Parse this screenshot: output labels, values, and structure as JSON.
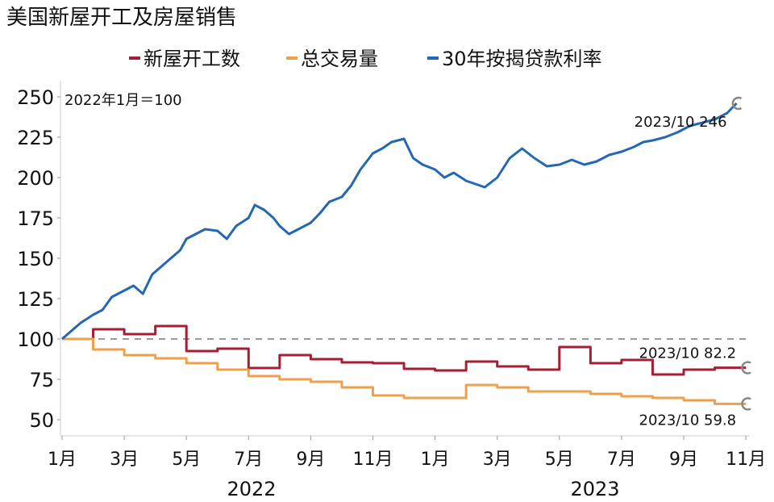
{
  "chart_data": {
    "type": "line",
    "title": "美国新屋开工及房屋销售",
    "note": "2022年1月＝100",
    "baseline": 100,
    "ylim": [
      40,
      260
    ],
    "yticks": [
      50,
      75,
      100,
      125,
      150,
      175,
      200,
      225,
      250
    ],
    "xticks": [
      "1月",
      "3月",
      "5月",
      "7月",
      "9月",
      "11月",
      "1月",
      "3月",
      "5月",
      "7月",
      "9月",
      "11月"
    ],
    "years": [
      "2022",
      "2023"
    ],
    "legend_position": "top",
    "series": [
      {
        "name": "新屋开工数",
        "color": "#a61e33",
        "step": true,
        "values": [
          100,
          106,
          103,
          108,
          92.5,
          94,
          82,
          90,
          87.5,
          85.5,
          85,
          81.5,
          80.5,
          86,
          83,
          81,
          95,
          85,
          87,
          78,
          81,
          82.2
        ],
        "label": "2023/10  82.2"
      },
      {
        "name": "总交易量",
        "color": "#f0a04b",
        "step": true,
        "values": [
          100,
          93.5,
          90,
          88,
          85,
          81,
          77,
          75,
          73.5,
          70,
          65,
          63.5,
          63.5,
          71.5,
          70,
          67.5,
          67.5,
          66,
          64.5,
          63.5,
          62,
          59.8
        ],
        "label": "2023/10  59.8"
      },
      {
        "name": "30年按揭贷款利率",
        "color": "#2467b3",
        "step": false,
        "x": [
          0,
          0.3,
          0.6,
          1,
          1.3,
          1.6,
          2,
          2.3,
          2.6,
          2.9,
          3.2,
          3.5,
          3.8,
          4,
          4.3,
          4.6,
          5,
          5.3,
          5.6,
          6,
          6.2,
          6.5,
          6.8,
          7,
          7.3,
          7.6,
          8,
          8.3,
          8.6,
          9,
          9.3,
          9.6,
          10,
          10.3,
          10.6,
          11,
          11.3,
          11.6,
          12,
          12.3,
          12.6,
          13,
          13.3,
          13.6,
          14,
          14.4,
          14.8,
          15.2,
          15.6,
          16,
          16.4,
          16.8,
          17.2,
          17.6,
          18,
          18.4,
          18.7,
          19,
          19.4,
          19.8,
          20.2,
          20.6,
          21,
          21.4,
          21.7
        ],
        "values": [
          100,
          105,
          110,
          115,
          118,
          126,
          130,
          133,
          128,
          140,
          145,
          150,
          155,
          162,
          165,
          168,
          167,
          162,
          170,
          175,
          183,
          180,
          175,
          170,
          165,
          168,
          172,
          178,
          185,
          188,
          195,
          205,
          215,
          218,
          222,
          224,
          212,
          208,
          205,
          200,
          203,
          198,
          196,
          194,
          200,
          212,
          218,
          212,
          207,
          208,
          211,
          208,
          210,
          214,
          216,
          219,
          222,
          223,
          225,
          228,
          232,
          234,
          236,
          240,
          246
        ],
        "label": "2023/10  246"
      }
    ]
  }
}
